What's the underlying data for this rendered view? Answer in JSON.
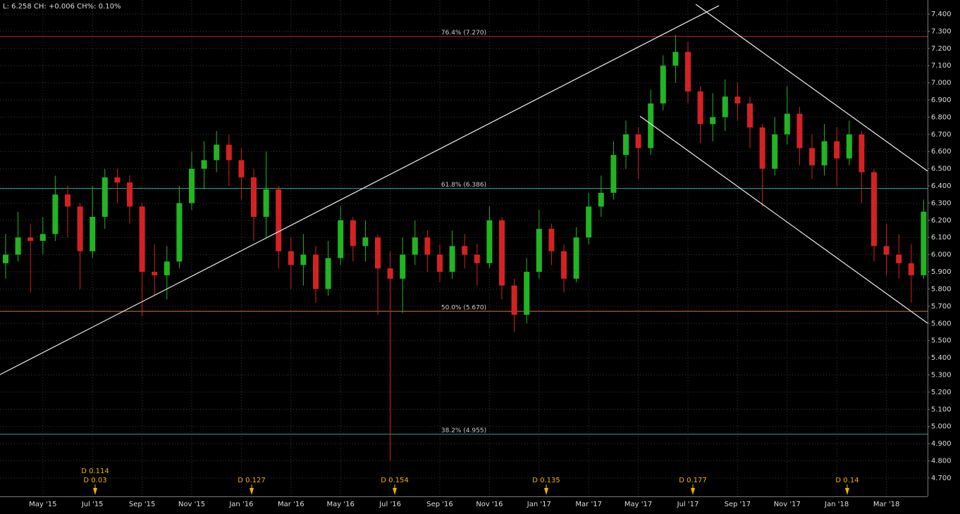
{
  "header": "L: 6.258 CH: +0.006 CH%: 0.10%",
  "chart_data": {
    "type": "candlestick",
    "categories": [
      null,
      null,
      null,
      "May '15",
      null,
      null,
      null,
      "Jul '15",
      null,
      null,
      null,
      "Sep '15",
      null,
      null,
      null,
      "Nov '15",
      null,
      null,
      null,
      "Jan '16",
      null,
      null,
      null,
      "Mar '16",
      null,
      null,
      null,
      "May '16",
      null,
      null,
      null,
      "Jul '16",
      null,
      null,
      null,
      "Sep '16",
      null,
      null,
      null,
      "Nov '16",
      null,
      null,
      null,
      "Jan '17",
      null,
      null,
      null,
      "Mar '17",
      null,
      null,
      null,
      "May '17",
      null,
      null,
      null,
      "Jul '17",
      null,
      null,
      null,
      "Sep '17",
      null,
      null,
      null,
      "Nov '17",
      null,
      null,
      null,
      "Jan '18",
      null,
      null,
      null,
      "Mar '18",
      null,
      null,
      null
    ],
    "open": [
      5.95,
      6.0,
      6.1,
      6.08,
      6.12,
      6.35,
      6.28,
      6.02,
      6.22,
      6.45,
      6.42,
      6.28,
      5.9,
      5.88,
      5.96,
      6.3,
      6.5,
      6.55,
      6.64,
      6.55,
      6.45,
      6.22,
      6.38,
      6.02,
      5.94,
      6.0,
      5.8,
      5.98,
      6.2,
      6.05,
      6.1,
      5.92,
      5.86,
      6.0,
      6.1,
      6.0,
      5.9,
      6.05,
      6.0,
      5.95,
      6.2,
      5.82,
      5.65,
      5.9,
      6.15,
      6.02,
      5.86,
      6.1,
      6.28,
      6.36,
      6.58,
      6.7,
      6.62,
      6.88,
      7.1,
      7.18,
      6.95,
      6.76,
      6.8,
      6.92,
      6.88,
      6.74,
      6.5,
      6.7,
      6.82,
      6.62,
      6.52,
      6.66,
      6.56,
      6.7,
      6.48,
      6.05,
      6.0,
      5.95,
      5.88
    ],
    "high": [
      6.12,
      6.25,
      6.18,
      6.22,
      6.46,
      6.4,
      6.3,
      6.4,
      6.5,
      6.5,
      6.46,
      6.3,
      6.06,
      6.05,
      6.4,
      6.6,
      6.66,
      6.72,
      6.7,
      6.62,
      6.5,
      6.6,
      6.4,
      6.1,
      6.12,
      6.05,
      6.08,
      6.28,
      6.22,
      6.2,
      6.12,
      6.02,
      6.1,
      6.2,
      6.14,
      6.06,
      6.14,
      6.12,
      6.06,
      6.28,
      6.22,
      5.86,
      5.98,
      6.26,
      6.18,
      6.06,
      6.16,
      6.36,
      6.46,
      6.66,
      6.78,
      6.74,
      6.96,
      7.16,
      7.28,
      7.24,
      6.98,
      6.94,
      7.02,
      7.0,
      6.92,
      6.76,
      6.8,
      6.98,
      6.86,
      6.7,
      6.76,
      6.74,
      6.78,
      6.72,
      6.5,
      6.18,
      6.12,
      6.06,
      6.32
    ],
    "low": [
      5.86,
      5.96,
      5.78,
      6.0,
      6.08,
      6.1,
      5.8,
      5.98,
      6.15,
      6.3,
      6.18,
      5.64,
      5.76,
      5.74,
      5.92,
      6.26,
      6.38,
      6.48,
      6.4,
      6.32,
      6.08,
      6.1,
      5.92,
      5.8,
      5.82,
      5.72,
      5.76,
      5.94,
      5.96,
      5.96,
      5.65,
      4.8,
      5.66,
      5.94,
      5.9,
      5.84,
      5.86,
      5.92,
      5.82,
      5.92,
      5.74,
      5.55,
      5.6,
      5.86,
      5.94,
      5.78,
      5.84,
      6.06,
      6.22,
      6.32,
      6.5,
      6.44,
      6.58,
      6.84,
      7.0,
      6.88,
      6.65,
      6.66,
      6.72,
      6.78,
      6.62,
      6.28,
      6.46,
      6.64,
      6.52,
      6.44,
      6.46,
      6.4,
      6.52,
      6.3,
      5.96,
      5.88,
      5.86,
      5.72,
      5.86
    ],
    "close": [
      6.0,
      6.1,
      6.08,
      6.12,
      6.35,
      6.28,
      6.02,
      6.22,
      6.45,
      6.42,
      6.28,
      5.9,
      5.88,
      5.96,
      6.3,
      6.5,
      6.55,
      6.64,
      6.55,
      6.45,
      6.22,
      6.38,
      6.02,
      5.94,
      6.0,
      5.8,
      5.98,
      6.2,
      6.05,
      6.1,
      5.92,
      5.86,
      6.0,
      6.1,
      6.0,
      5.9,
      6.05,
      6.0,
      5.95,
      6.2,
      5.82,
      5.65,
      5.9,
      6.15,
      6.02,
      5.86,
      6.1,
      6.28,
      6.36,
      6.58,
      6.7,
      6.62,
      6.88,
      7.1,
      7.18,
      6.95,
      6.76,
      6.8,
      6.92,
      6.88,
      6.74,
      6.5,
      6.7,
      6.82,
      6.62,
      6.52,
      6.66,
      6.56,
      6.7,
      6.48,
      6.05,
      6.0,
      5.95,
      5.88,
      6.25
    ],
    "up_color": "#22b422",
    "down_color": "#d42222",
    "ylim": [
      4.593,
      7.482
    ],
    "yticks": [
      {
        "value": 4.7,
        "label": "4.700"
      },
      {
        "value": 4.8,
        "label": "4.800"
      },
      {
        "value": 4.9,
        "label": "4.900"
      },
      {
        "value": 5.0,
        "label": "5.000"
      },
      {
        "value": 5.1,
        "label": "5.100"
      },
      {
        "value": 5.2,
        "label": "5.200"
      },
      {
        "value": 5.3,
        "label": "5.300"
      },
      {
        "value": 5.4,
        "label": "5.400"
      },
      {
        "value": 5.5,
        "label": "5.500"
      },
      {
        "value": 5.6,
        "label": "5.600"
      },
      {
        "value": 5.7,
        "label": "5.700"
      },
      {
        "value": 5.8,
        "label": "5.800"
      },
      {
        "value": 5.9,
        "label": "5.900"
      },
      {
        "value": 6.0,
        "label": "6.000"
      },
      {
        "value": 6.1,
        "label": "6.100"
      },
      {
        "value": 6.2,
        "label": "6.200"
      },
      {
        "value": 6.3,
        "label": "6.300"
      },
      {
        "value": 6.4,
        "label": "6.400"
      },
      {
        "value": 6.5,
        "label": "6.500"
      },
      {
        "value": 6.6,
        "label": "6.600"
      },
      {
        "value": 6.7,
        "label": "6.700"
      },
      {
        "value": 6.8,
        "label": "6.800"
      },
      {
        "value": 6.9,
        "label": "6.900"
      },
      {
        "value": 7.0,
        "label": "7.000"
      },
      {
        "value": 7.1,
        "label": "7.100"
      },
      {
        "value": 7.2,
        "label": "7.200"
      },
      {
        "value": 7.3,
        "label": "7.300"
      },
      {
        "value": 7.4,
        "label": "7.400"
      }
    ],
    "grid": true,
    "levels": [
      {
        "label": "76.4% (7.270)",
        "value": 7.27,
        "color": "#b42a2a"
      },
      {
        "label": "61.8% (6.386)",
        "value": 6.386,
        "color": "#2aa0a0"
      },
      {
        "label": "50.0% (5.670)",
        "value": 5.67,
        "color": "#d07a3a"
      },
      {
        "label": "38.2% (4.955)",
        "value": 4.955,
        "color": "#2aa0a0"
      }
    ],
    "dividends": [
      [
        "D 0.114",
        "D 0.03"
      ],
      [
        "D 0.127"
      ],
      [
        "D 0.154"
      ],
      [
        "D 0.135"
      ],
      [
        "D 0.177"
      ],
      [
        "D 0.14"
      ]
    ],
    "dividend_color": "#f0b400"
  }
}
